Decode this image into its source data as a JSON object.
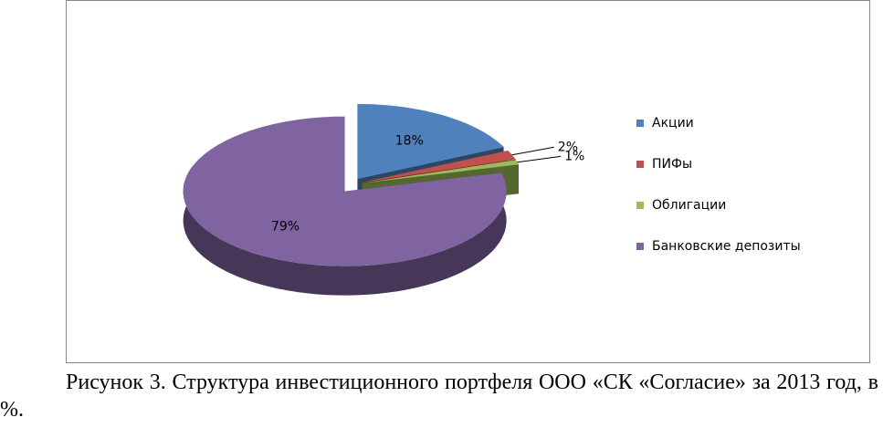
{
  "chart_data": {
    "type": "pie",
    "categories": [
      "Акции",
      "ПИФы",
      "Облигации",
      "Банковские депозиты"
    ],
    "values": [
      18,
      2,
      1,
      79
    ],
    "value_labels": [
      "18%",
      "2%",
      "1%",
      "79%"
    ],
    "colors": [
      "#4f81bd",
      "#c0504d",
      "#9bbb59",
      "#8064a2"
    ],
    "legend": "right",
    "three_d": true,
    "exploded": true
  },
  "caption": "Рисунок 3.  Структура инвестиционного портфеля ООО «СК «Согласие» за 2013 год, в %."
}
